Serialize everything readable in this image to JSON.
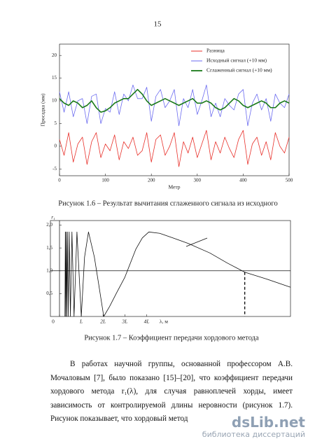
{
  "page_number": "15",
  "captions": [
    "Рисунок 1.6 – Результат вычитания сглаженного сигнала из исходного",
    "Рисунок 1.7 – Коэффициент передачи хордового метода"
  ],
  "paragraph": "В работах научной группы, основанной профессором А.В. Мочаловым [7], было показано [15]–[20], что коэффициент передачи хордового метода r₁(λ), для случая равноплечей хорды, имеет зависимость от контролируемой длины неровности (рисунок 1.7). Рисунок показывает, что хордовый метод",
  "watermark": [
    "dsLib.net",
    "библиотека диссертаций"
  ],
  "chart_data": [
    {
      "type": "line",
      "x_label": "Метр",
      "y_label": "Просадка (мм)",
      "x": [
        0,
        10,
        20,
        30,
        40,
        50,
        60,
        70,
        80,
        90,
        100,
        110,
        120,
        130,
        140,
        150,
        160,
        170,
        180,
        190,
        200,
        210,
        220,
        230,
        240,
        250,
        260,
        270,
        280,
        290,
        300,
        310,
        320,
        330,
        340,
        350,
        360,
        370,
        380,
        390,
        400,
        410,
        420,
        430,
        440,
        450,
        460,
        470,
        480,
        490,
        500
      ],
      "series": [
        {
          "name": "Разница",
          "color": "#e8302a",
          "values": [
            1.5,
            -2,
            3,
            -3.5,
            0.5,
            2,
            -4,
            1,
            3,
            -2.5,
            0.5,
            -1,
            2.5,
            -3,
            1,
            -0.5,
            2,
            -2,
            -1,
            3,
            -3.5,
            1.5,
            2.5,
            -2,
            0,
            3,
            -4.5,
            1,
            -1.5,
            2,
            -2.5,
            0.5,
            3.5,
            -3,
            1,
            -1.5,
            2,
            -0.5,
            -2.5,
            1.5,
            3.5,
            -4,
            0.5,
            2,
            -2,
            1,
            -3,
            3,
            0,
            -1.5,
            2
          ]
        },
        {
          "name": "Исходный сигнал (+10 мм)",
          "color": "#6b6bf0",
          "values": [
            12,
            7.5,
            12,
            6.5,
            10,
            10.5,
            5,
            11,
            11.5,
            5,
            8.3,
            7.5,
            12,
            7,
            11.5,
            10,
            13.5,
            10.5,
            10.5,
            13,
            5.5,
            11,
            12.5,
            8.5,
            10,
            12.5,
            4.5,
            10.5,
            8.5,
            12.5,
            7,
            10,
            13.5,
            6.5,
            9.5,
            6.5,
            10.5,
            9,
            8,
            11.5,
            12.5,
            4.5,
            9.5,
            11.5,
            8,
            10.5,
            5.5,
            11.5,
            9.5,
            8.5,
            11.5
          ]
        },
        {
          "name": "Сглаженный сигнал (+10 мм)",
          "color": "#1a7a1a",
          "values": [
            10.5,
            9.5,
            9,
            10,
            9.5,
            8.5,
            9,
            10,
            8.5,
            7.5,
            7.8,
            8.5,
            9.5,
            10,
            10.5,
            10.5,
            11.5,
            12.5,
            11.5,
            10,
            9,
            9.5,
            10,
            10.5,
            10,
            9.5,
            9,
            9.5,
            10,
            10.5,
            9.5,
            9.5,
            10,
            9.5,
            8.5,
            8,
            8.5,
            9.5,
            10.5,
            10,
            9,
            8.5,
            9,
            9.5,
            10,
            9.5,
            8.5,
            8.5,
            9.5,
            10,
            9.5
          ]
        }
      ],
      "xlim": [
        0,
        500
      ],
      "ylim": [
        -6.5,
        22.5
      ],
      "xticks": [
        0,
        100,
        200,
        300,
        400,
        500
      ],
      "yticks": [
        -5,
        0,
        5,
        10,
        15,
        20
      ],
      "legend": "upper right"
    },
    {
      "type": "line",
      "x_label": "λ, м",
      "y_label": "r₁",
      "series": [
        {
          "color": "#111111",
          "x": [
            0.25,
            0.267,
            0.286,
            0.308,
            0.333,
            0.364,
            0.4,
            0.444,
            0.5,
            0.571,
            0.667,
            0.8,
            1.0,
            1.15,
            1.33,
            1.6,
            1.8,
            2.03,
            2.3,
            2.6,
            3.0,
            3.5,
            3.8,
            4.1,
            4.6,
            5.2,
            5.9,
            6.9,
            7.7,
            8.5,
            9.5,
            10.6
          ],
          "values": [
            0,
            1.85,
            0,
            1.85,
            0,
            1.85,
            0,
            1.85,
            0,
            1.85,
            0,
            1.85,
            0,
            1.3,
            1.85,
            1.3,
            0.7,
            0,
            0.22,
            0.5,
            0.86,
            1.47,
            1.72,
            1.85,
            1.82,
            1.72,
            1.6,
            1.39,
            1.17,
            0.97,
            0.82,
            0.64
          ]
        }
      ],
      "xlim": [
        0,
        10.6
      ],
      "ylim": [
        0,
        2.1
      ],
      "xticks": [
        0,
        {
          "value": 1,
          "label": "L"
        },
        {
          "value": 2,
          "label": "2L"
        },
        {
          "value": 3,
          "label": "3L"
        },
        {
          "value": 4,
          "label": "4L"
        }
      ],
      "yticks": [
        {
          "value": 0.5,
          "label": "0,5"
        },
        {
          "value": 1.0,
          "label": "1,0"
        },
        {
          "value": 1.5,
          "label": "1,5"
        },
        {
          "value": 2.0,
          "label": "2,0"
        }
      ],
      "hline": 1.0,
      "vline_x": 8.5
    }
  ]
}
